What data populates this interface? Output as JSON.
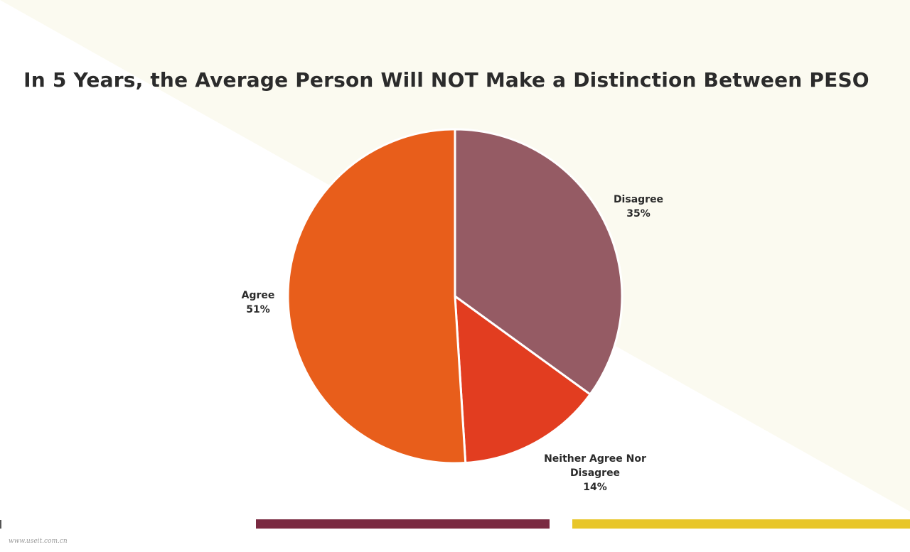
{
  "chart_data": {
    "type": "pie",
    "title": "In 5 Years, the Average Person Will NOT Make a Distinction Between PESO",
    "slices": [
      {
        "label": "Disagree",
        "value": 35,
        "value_label": "35%",
        "color": "#955b64"
      },
      {
        "label": "Neither Agree Nor Disagree",
        "label_lines": [
          "Neither Agree Nor",
          "Disagree"
        ],
        "value": 14,
        "value_label": "14%",
        "color": "#e23d20"
      },
      {
        "label": "Agree",
        "value": 51,
        "value_label": "51%",
        "color": "#e85e1b"
      }
    ]
  },
  "footer": {
    "watermark": "www.useit.com.cn"
  },
  "colors": {
    "background": "#ffffff",
    "background_band": "#fbfaf0",
    "footer_bar_left": "#7a2a41",
    "footer_bar_right": "#e8c62a"
  }
}
